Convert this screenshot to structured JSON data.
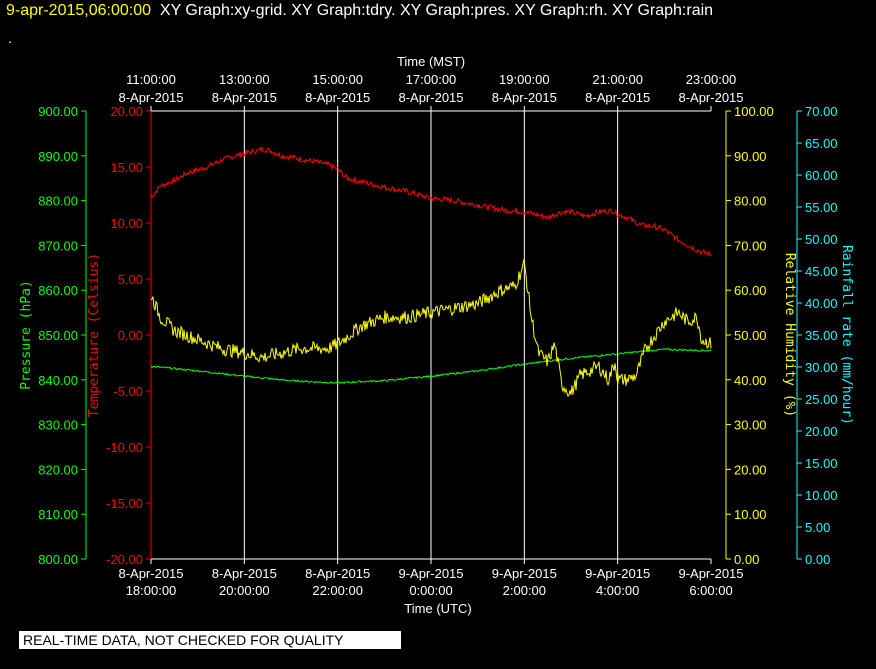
{
  "header": {
    "date": "9-apr-2015,06:00:00",
    "graphs": "XY Graph:xy-grid.  XY Graph:tdry.  XY Graph:pres.  XY Graph:rh.  XY Graph:rain",
    "dot": "."
  },
  "footer": {
    "notice": "REAL-TIME DATA, NOT CHECKED FOR QUALITY"
  },
  "colors": {
    "temperature": "#ff0000",
    "pressure": "#00ff00",
    "humidity": "#ffff00",
    "rain": "#00ffff",
    "grid": "#ffffff",
    "background": "#000000"
  },
  "chart_data": {
    "type": "line",
    "top_axis": {
      "label": "Time (MST)",
      "ticks": [
        {
          "time": "11:00:00",
          "date": "8-Apr-2015"
        },
        {
          "time": "13:00:00",
          "date": "8-Apr-2015"
        },
        {
          "time": "15:00:00",
          "date": "8-Apr-2015"
        },
        {
          "time": "17:00:00",
          "date": "8-Apr-2015"
        },
        {
          "time": "19:00:00",
          "date": "8-Apr-2015"
        },
        {
          "time": "21:00:00",
          "date": "8-Apr-2015"
        },
        {
          "time": "23:00:00",
          "date": "8-Apr-2015"
        }
      ]
    },
    "bottom_axis": {
      "label": "Time (UTC)",
      "xlim_hours_utc": [
        18,
        30
      ],
      "ticks": [
        {
          "date": "8-Apr-2015",
          "time": "18:00:00"
        },
        {
          "date": "8-Apr-2015",
          "time": "20:00:00"
        },
        {
          "date": "8-Apr-2015",
          "time": "22:00:00"
        },
        {
          "date": "9-Apr-2015",
          "time": "0:00:00"
        },
        {
          "date": "9-Apr-2015",
          "time": "2:00:00"
        },
        {
          "date": "9-Apr-2015",
          "time": "4:00:00"
        },
        {
          "date": "9-Apr-2015",
          "time": "6:00:00"
        }
      ]
    },
    "axes": {
      "pressure": {
        "label": "Pressure (hPa)",
        "ylim": [
          800,
          900
        ],
        "ticks": [
          "900.00",
          "890.00",
          "880.00",
          "870.00",
          "860.00",
          "850.00",
          "840.00",
          "830.00",
          "820.00",
          "810.00",
          "800.00"
        ]
      },
      "temperature": {
        "label": "Temperature (Celsius)",
        "ylim": [
          -20,
          20
        ],
        "ticks": [
          "20.00",
          "15.00",
          "10.00",
          "5.00",
          "0.00",
          "-5.00",
          "-10.00",
          "-15.00",
          "-20.00"
        ]
      },
      "humidity": {
        "label": "Relative Humidity (%)",
        "ylim": [
          0,
          100
        ],
        "ticks": [
          "100.00",
          "90.00",
          "80.00",
          "70.00",
          "60.00",
          "50.00",
          "40.00",
          "30.00",
          "20.00",
          "10.00",
          "0.00"
        ]
      },
      "rain": {
        "label": "Rainfall rate (mm/hour)",
        "ylim": [
          0,
          70
        ],
        "ticks": [
          "70.00",
          "65.00",
          "60.00",
          "55.00",
          "50.00",
          "45.00",
          "40.00",
          "35.00",
          "30.00",
          "25.00",
          "20.00",
          "15.00",
          "10.00",
          "5.00",
          "0.00"
        ]
      }
    },
    "series": [
      {
        "name": "tdry",
        "axis": "temperature",
        "color": "#ff0000",
        "x": [
          18.0,
          18.2,
          18.5,
          18.8,
          19.2,
          19.5,
          19.8,
          20.0,
          20.2,
          20.4,
          20.6,
          20.8,
          21.0,
          21.2,
          21.5,
          21.8,
          22.0,
          22.2,
          22.5,
          22.8,
          23.0,
          23.5,
          24.0,
          24.5,
          25.0,
          25.5,
          26.0,
          26.2,
          26.5,
          26.8,
          27.0,
          27.3,
          27.6,
          27.9,
          28.0,
          28.2,
          28.5,
          28.8,
          29.0,
          29.3,
          29.6,
          29.8,
          30.0
        ],
        "values": [
          12.3,
          13.3,
          13.8,
          14.5,
          15.0,
          15.6,
          16.0,
          16.2,
          16.4,
          16.6,
          16.4,
          16.0,
          15.9,
          15.7,
          15.5,
          15.2,
          14.8,
          14.0,
          13.7,
          13.4,
          13.2,
          12.8,
          12.2,
          12.0,
          11.6,
          11.2,
          11.0,
          10.8,
          10.5,
          11.0,
          11.0,
          10.6,
          11.0,
          11.1,
          10.8,
          10.5,
          9.8,
          9.7,
          9.4,
          8.5,
          7.8,
          7.4,
          7.2
        ],
        "noise": 0.25
      },
      {
        "name": "pres",
        "axis": "pressure",
        "color": "#00ff00",
        "x": [
          18.0,
          19.0,
          20.0,
          21.0,
          22.0,
          22.5,
          23.0,
          24.0,
          25.0,
          26.0,
          27.0,
          28.0,
          29.0,
          30.0
        ],
        "values": [
          843.0,
          842.0,
          840.8,
          839.8,
          839.3,
          839.6,
          839.8,
          840.8,
          842.0,
          843.5,
          844.8,
          845.8,
          846.8,
          846.5
        ],
        "noise": 0.2
      },
      {
        "name": "rh",
        "axis": "humidity",
        "color": "#ffff00",
        "x": [
          18.0,
          18.2,
          18.5,
          19.0,
          19.5,
          20.0,
          20.4,
          20.8,
          21.2,
          21.5,
          21.8,
          22.0,
          22.5,
          23.0,
          23.5,
          24.0,
          24.5,
          25.0,
          25.5,
          25.8,
          26.0,
          26.15,
          26.3,
          26.5,
          26.65,
          26.8,
          27.0,
          27.2,
          27.4,
          27.6,
          27.8,
          27.95,
          28.0,
          28.2,
          28.4,
          28.6,
          28.8,
          29.0,
          29.3,
          29.5,
          29.7,
          29.8,
          30.0
        ],
        "values": [
          59,
          54,
          51,
          49,
          47,
          46,
          45,
          46,
          47,
          47,
          47,
          48,
          52,
          54,
          54,
          55,
          56,
          57,
          60,
          61,
          66,
          54,
          46,
          44,
          48,
          39,
          37,
          41,
          42,
          43,
          40,
          44,
          40,
          40,
          41,
          47,
          50,
          53,
          55,
          53,
          54,
          49,
          48
        ],
        "noise": 1.5
      }
    ]
  }
}
